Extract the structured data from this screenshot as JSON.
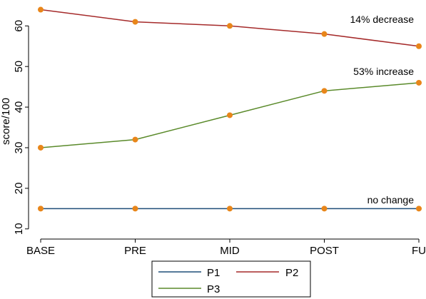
{
  "chart_data": {
    "type": "line",
    "categories": [
      "BASE",
      "PRE",
      "MID",
      "POST",
      "FU"
    ],
    "ylabel": "score/100",
    "xlabel": "",
    "yticks": [
      10,
      20,
      30,
      40,
      50,
      60
    ],
    "ylim": [
      7.5,
      65.5
    ],
    "grid": false,
    "legend_position": "bottom",
    "marker_color": "#e8861a",
    "series": [
      {
        "name": "P1",
        "color": "#1f4e79",
        "values": [
          15,
          15,
          15,
          15,
          15
        ]
      },
      {
        "name": "P2",
        "color": "#a52a2a",
        "values": [
          64,
          61,
          60,
          58,
          55
        ]
      },
      {
        "name": "P3",
        "color": "#5a8a2a",
        "values": [
          30,
          32,
          38,
          44,
          46
        ]
      }
    ],
    "annotations": [
      {
        "text": "14% decrease",
        "series": "P2"
      },
      {
        "text": "53% increase",
        "series": "P3"
      },
      {
        "text": "no change",
        "series": "P1"
      }
    ]
  }
}
